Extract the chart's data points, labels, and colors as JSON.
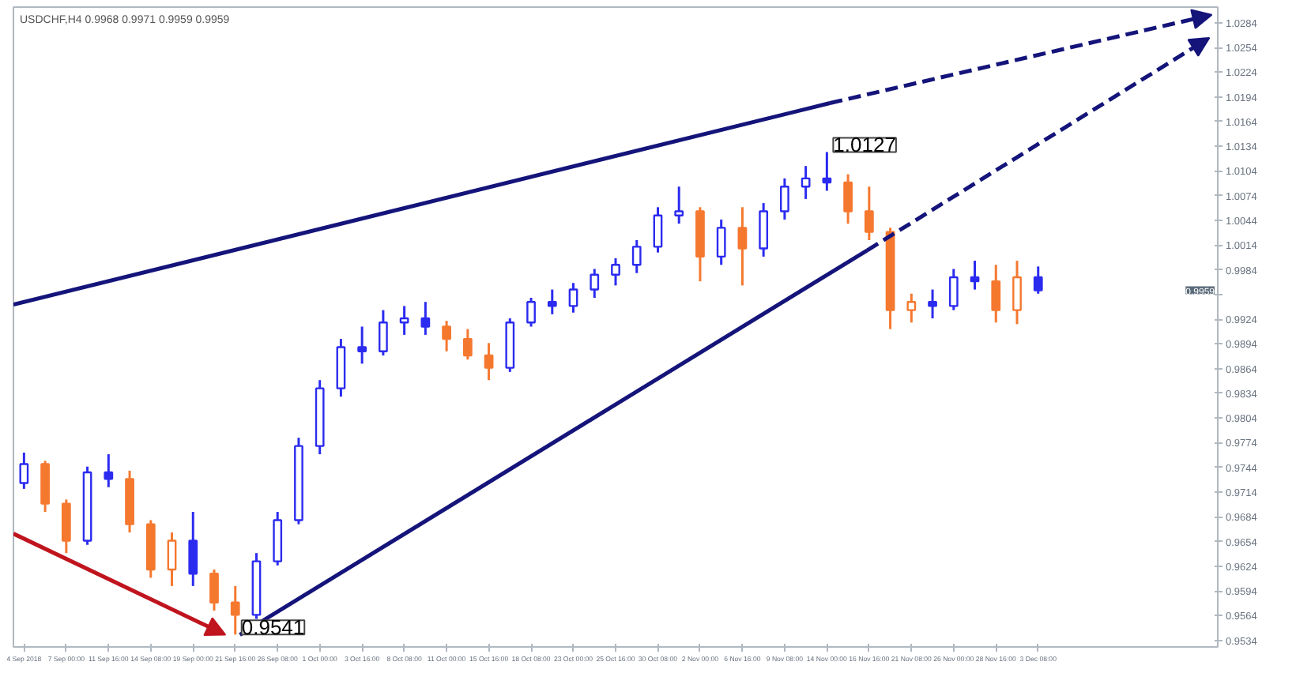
{
  "chart_data": {
    "type": "candlestick",
    "title": "USDCHF,H4  0.9968 0.9971 0.9959 0.9959",
    "categories": [
      "4 Sep 2018",
      null,
      "7 Sep 00:00",
      null,
      "11 Sep 16:00",
      null,
      "14 Sep 08:00",
      null,
      "19 Sep 00:00",
      null,
      "21 Sep 16:00",
      null,
      "26 Sep 08:00",
      null,
      "1 Oct 00:00",
      null,
      "3 Oct 16:00",
      null,
      "8 Oct 08:00",
      null,
      "11 Oct 00:00",
      null,
      "15 Oct 16:00",
      null,
      "18 Oct 08:00",
      null,
      "23 Oct 00:00",
      null,
      "25 Oct 16:00",
      null,
      "30 Oct 08:00",
      null,
      "2 Nov 00:00",
      null,
      "6 Nov 16:00",
      null,
      "9 Nov 08:00",
      null,
      "14 Nov 00:00",
      null,
      "16 Nov 16:00",
      null,
      "21 Nov 08:00",
      null,
      "26 Nov 00:00",
      null,
      "28 Nov 16:00",
      null,
      "3 Dec 08:00",
      null,
      null,
      null,
      null,
      null,
      null,
      null,
      null
    ],
    "ylim": [
      0.9526,
      1.0303
    ],
    "yticks": [
      1.0284,
      1.0254,
      1.0224,
      1.0194,
      1.0164,
      1.0134,
      1.0104,
      1.0074,
      1.0044,
      1.0014,
      0.9984,
      {
        "value": 0.9954,
        "label": null
      },
      0.9924,
      0.9894,
      0.9864,
      0.9834,
      0.9804,
      0.9774,
      0.9744,
      0.9714,
      0.9684,
      0.9654,
      0.9624,
      0.9594,
      0.9564,
      0.9534
    ],
    "ohlc": [
      [
        0.9725,
        0.9762,
        0.9718,
        0.9748
      ],
      [
        0.9748,
        0.9752,
        0.969,
        0.97
      ],
      [
        0.97,
        0.9705,
        0.964,
        0.9655
      ],
      [
        0.9655,
        0.9745,
        0.965,
        0.9738
      ],
      [
        0.9738,
        0.976,
        0.972,
        0.973
      ],
      [
        0.973,
        0.974,
        0.9665,
        0.9675
      ],
      [
        0.9675,
        0.968,
        0.961,
        0.962
      ],
      [
        0.962,
        0.9665,
        0.96,
        0.9655
      ],
      [
        0.9655,
        0.969,
        0.96,
        0.9615
      ],
      [
        0.9615,
        0.962,
        0.957,
        0.958
      ],
      [
        0.958,
        0.96,
        0.9541,
        0.9565
      ],
      [
        0.9565,
        0.964,
        0.956,
        0.963
      ],
      [
        0.963,
        0.969,
        0.9625,
        0.968
      ],
      [
        0.968,
        0.978,
        0.9675,
        0.977
      ],
      [
        0.977,
        0.985,
        0.976,
        0.984
      ],
      [
        0.984,
        0.99,
        0.983,
        0.989
      ],
      [
        0.989,
        0.9915,
        0.987,
        0.9885
      ],
      [
        0.9885,
        0.9935,
        0.988,
        0.992
      ],
      [
        0.992,
        0.994,
        0.9905,
        0.9925
      ],
      [
        0.9925,
        0.9945,
        0.9905,
        0.9915
      ],
      [
        0.9915,
        0.9922,
        0.9885,
        0.99
      ],
      [
        0.99,
        0.9912,
        0.9875,
        0.988
      ],
      [
        0.988,
        0.9895,
        0.985,
        0.9865
      ],
      [
        0.9865,
        0.9925,
        0.986,
        0.992
      ],
      [
        0.992,
        0.995,
        0.9915,
        0.9945
      ],
      [
        0.9945,
        0.996,
        0.993,
        0.994
      ],
      [
        0.994,
        0.9968,
        0.9932,
        0.996
      ],
      [
        0.996,
        0.9985,
        0.995,
        0.9978
      ],
      [
        0.9978,
        0.9998,
        0.9965,
        0.999
      ],
      [
        0.999,
        1.002,
        0.998,
        1.0012
      ],
      [
        1.0012,
        1.006,
        1.0005,
        1.005
      ],
      [
        1.005,
        1.0085,
        1.004,
        1.0055
      ],
      [
        1.0055,
        1.006,
        0.997,
        1.0
      ],
      [
        1.0,
        1.0045,
        0.999,
        1.0035
      ],
      [
        1.0035,
        1.006,
        0.9965,
        1.001
      ],
      [
        1.001,
        1.0065,
        1.0,
        1.0055
      ],
      [
        1.0055,
        1.0095,
        1.0045,
        1.0085
      ],
      [
        1.0085,
        1.011,
        1.007,
        1.0095
      ],
      [
        1.0095,
        1.0127,
        1.008,
        1.009
      ],
      [
        1.009,
        1.01,
        1.004,
        1.0055
      ],
      [
        1.0055,
        1.0085,
        1.002,
        1.003
      ],
      [
        1.003,
        1.0035,
        0.9912,
        0.9935
      ],
      [
        0.9935,
        0.9955,
        0.992,
        0.9945
      ],
      [
        0.9945,
        0.996,
        0.9925,
        0.994
      ],
      [
        0.994,
        0.9985,
        0.9935,
        0.9975
      ],
      [
        0.9975,
        0.9995,
        0.996,
        0.997
      ],
      [
        0.997,
        0.999,
        0.992,
        0.9935
      ],
      [
        0.9935,
        0.9995,
        0.9918,
        0.9975
      ],
      [
        0.9975,
        0.9988,
        0.9955,
        0.9959
      ],
      null,
      null,
      null,
      null,
      null,
      null,
      null,
      null
    ],
    "colors": [
      "#2b2bf0",
      "#f5782f",
      "#f5782f",
      "#2b2bf0",
      "#2b2bf0",
      "#f5782f",
      "#f5782f",
      "#f5782f",
      "#2b2bf0",
      "#f5782f",
      "#f5782f",
      "#2b2bf0",
      "#2b2bf0",
      "#2b2bf0",
      "#2b2bf0",
      "#2b2bf0",
      "#2b2bf0",
      "#2b2bf0",
      "#2b2bf0",
      "#2b2bf0",
      "#f5782f",
      "#f5782f",
      "#f5782f",
      "#2b2bf0",
      "#2b2bf0",
      "#2b2bf0",
      "#2b2bf0",
      "#2b2bf0",
      "#2b2bf0",
      "#2b2bf0",
      "#2b2bf0",
      "#2b2bf0",
      "#f5782f",
      "#2b2bf0",
      "#f5782f",
      "#2b2bf0",
      "#2b2bf0",
      "#2b2bf0",
      "#2b2bf0",
      "#f5782f",
      "#f5782f",
      "#f5782f",
      "#f5782f",
      "#2b2bf0",
      "#2b2bf0",
      "#2b2bf0",
      "#f5782f",
      "#f5782f",
      "#2b2bf0",
      null,
      null,
      null,
      null,
      null,
      null,
      null,
      null
    ],
    "annotations": [
      "0.9541",
      "1.0127",
      "0.9959"
    ]
  }
}
